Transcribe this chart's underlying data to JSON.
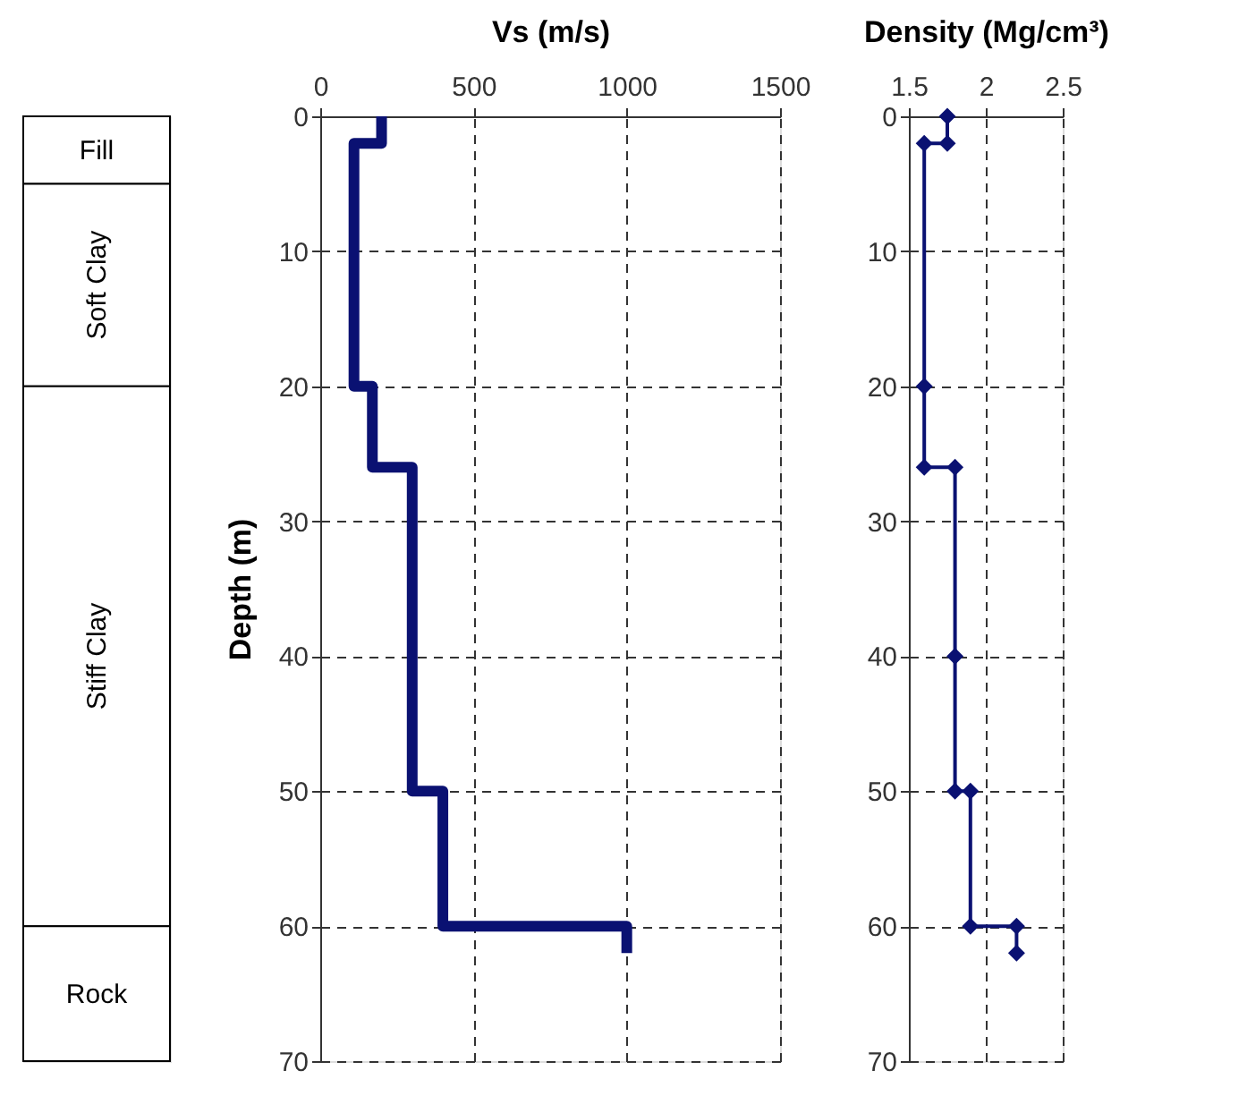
{
  "chart_data": [
    {
      "type": "bar",
      "stacked": true,
      "categories": [
        null
      ],
      "ylim": [
        70,
        0
      ],
      "tick_labels": false,
      "series": [
        {
          "name": "Fill",
          "color": "#ffffff",
          "values": [
            5
          ]
        },
        {
          "name": "Soft Clay",
          "color": "#ffffff",
          "values": [
            15
          ]
        },
        {
          "name": "Stiff Clay",
          "color": "#ffffff",
          "values": [
            40
          ]
        },
        {
          "name": "Rock",
          "color": "#ffffff",
          "values": [
            10
          ]
        }
      ]
    },
    {
      "type": "line",
      "xlabel": "Vs (m/s)",
      "ylabel": "Depth (m)",
      "xlim": [
        0,
        1500
      ],
      "xticks": [
        0,
        500,
        1000,
        1500
      ],
      "ylim": [
        70,
        0
      ],
      "yticks": [
        0,
        10,
        20,
        30,
        40,
        50,
        60,
        70
      ],
      "grid": true,
      "line_style": "solid",
      "series": [
        {
          "color": "#0a1172",
          "x": [
            200,
            200,
            110,
            110,
            170,
            170,
            300,
            300,
            400,
            400,
            1000,
            1000
          ],
          "values": [
            0,
            2,
            2,
            20,
            20,
            26,
            26,
            50,
            50,
            60,
            60,
            62
          ]
        }
      ]
    },
    {
      "type": "line",
      "xlabel": "Density (Mg/cm³)",
      "xlim": [
        1.5,
        2.5
      ],
      "xticks": [
        1.5,
        2,
        2.5
      ],
      "ylim": [
        70,
        0
      ],
      "yticks": [
        0,
        10,
        20,
        30,
        40,
        50,
        60,
        70
      ],
      "grid": true,
      "marker": "diamond",
      "line_style": "solid",
      "series": [
        {
          "color": "#0a1172",
          "x": [
            1.75,
            1.75,
            1.6,
            1.6,
            1.6,
            1.8,
            1.8,
            1.8,
            1.9,
            1.9,
            2.2,
            2.2
          ],
          "values": [
            0,
            2,
            2,
            20,
            26,
            26,
            40,
            50,
            50,
            60,
            60,
            62
          ]
        }
      ]
    }
  ]
}
